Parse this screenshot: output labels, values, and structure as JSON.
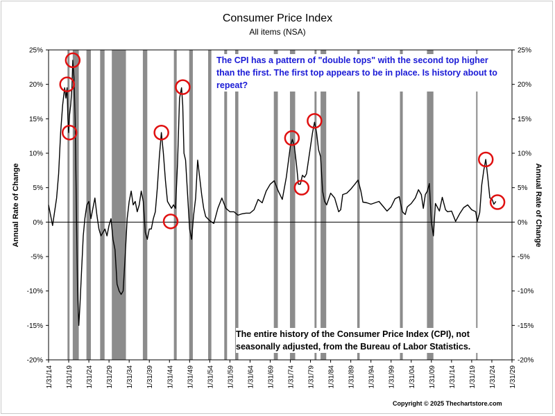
{
  "chart_data": {
    "type": "line",
    "title": "Consumer Price Index",
    "subtitle": "All items (NSA)",
    "ylabel_left": "Annual Rate of Change",
    "ylabel_right": "Annual Rate of Change",
    "ylim": [
      -20,
      25
    ],
    "xlim": [
      1914,
      2029
    ],
    "y_ticks": [
      "25%",
      "20%",
      "15%",
      "10%",
      "5%",
      "0%",
      "-5%",
      "-10%",
      "-15%",
      "-20%"
    ],
    "x_ticks": [
      "1/31/14",
      "1/31/19",
      "1/31/24",
      "1/31/29",
      "1/31/34",
      "1/31/39",
      "1/31/44",
      "1/31/49",
      "1/31/54",
      "1/31/59",
      "1/31/64",
      "1/31/69",
      "1/31/74",
      "1/31/79",
      "1/31/84",
      "1/31/89",
      "1/31/94",
      "1/31/99",
      "1/31/04",
      "1/31/09",
      "1/31/14",
      "1/31/19",
      "1/31/24",
      "1/31/29"
    ],
    "recessions": [
      [
        1918.7,
        1919.2
      ],
      [
        1920.0,
        1921.5
      ],
      [
        1923.4,
        1924.5
      ],
      [
        1926.8,
        1927.9
      ],
      [
        1929.7,
        1933.2
      ],
      [
        1937.4,
        1938.5
      ],
      [
        1945.1,
        1945.8
      ],
      [
        1948.9,
        1949.8
      ],
      [
        1953.6,
        1954.4
      ],
      [
        1957.6,
        1958.3
      ],
      [
        1960.3,
        1961.1
      ],
      [
        1969.9,
        1970.9
      ],
      [
        1973.9,
        1975.2
      ],
      [
        1980.0,
        1980.5
      ],
      [
        1981.5,
        1982.9
      ],
      [
        1990.6,
        1991.2
      ],
      [
        2001.2,
        2001.9
      ],
      [
        2007.9,
        2009.5
      ],
      [
        2020.1,
        2020.3
      ]
    ],
    "series": [
      {
        "name": "",
        "x": [
          1914.0,
          1914.5,
          1915.0,
          1915.5,
          1916.0,
          1916.5,
          1917.0,
          1917.5,
          1918.0,
          1918.3,
          1918.6,
          1918.8,
          1919.0,
          1919.2,
          1919.5,
          1919.8,
          1920.0,
          1920.3,
          1920.6,
          1920.9,
          1921.2,
          1921.5,
          1921.8,
          1922.2,
          1922.6,
          1923.0,
          1923.5,
          1924.0,
          1924.5,
          1925.0,
          1925.5,
          1926.0,
          1926.5,
          1927.0,
          1927.5,
          1928.0,
          1928.5,
          1929.0,
          1929.5,
          1930.0,
          1930.5,
          1931.0,
          1931.5,
          1932.0,
          1932.5,
          1933.0,
          1933.5,
          1934.0,
          1934.5,
          1935.0,
          1935.5,
          1936.0,
          1936.5,
          1937.0,
          1937.5,
          1938.0,
          1938.5,
          1939.0,
          1939.5,
          1940.0,
          1940.5,
          1941.0,
          1941.5,
          1942.0,
          1942.5,
          1943.0,
          1943.5,
          1944.0,
          1944.5,
          1945.0,
          1945.5,
          1946.0,
          1946.5,
          1947.0,
          1947.3,
          1947.6,
          1948.0,
          1948.5,
          1949.0,
          1949.5,
          1950.0,
          1950.5,
          1951.0,
          1951.5,
          1952.0,
          1952.5,
          1953.0,
          1954.0,
          1955.0,
          1956.0,
          1957.0,
          1958.0,
          1959.0,
          1960.0,
          1961.0,
          1962.0,
          1963.0,
          1964.0,
          1965.0,
          1966.0,
          1967.0,
          1968.0,
          1969.0,
          1970.0,
          1971.0,
          1972.0,
          1973.0,
          1974.0,
          1974.5,
          1975.0,
          1975.5,
          1976.0,
          1976.5,
          1977.0,
          1977.5,
          1978.0,
          1978.5,
          1979.0,
          1979.5,
          1980.0,
          1980.5,
          1981.0,
          1981.5,
          1982.0,
          1982.5,
          1983.0,
          1984.0,
          1985.0,
          1986.0,
          1986.5,
          1987.0,
          1988.0,
          1989.0,
          1990.0,
          1990.8,
          1991.5,
          1992.0,
          1993.0,
          1994.0,
          1995.0,
          1996.0,
          1997.0,
          1998.0,
          1999.0,
          2000.0,
          2001.0,
          2001.8,
          2002.5,
          2003.0,
          2004.0,
          2005.0,
          2005.8,
          2006.5,
          2007.0,
          2007.5,
          2008.0,
          2008.5,
          2009.0,
          2009.5,
          2010.0,
          2011.0,
          2011.7,
          2012.5,
          2013.0,
          2014.0,
          2015.0,
          2016.0,
          2017.0,
          2018.0,
          2019.0,
          2020.0,
          2020.4,
          2021.0,
          2021.5,
          2022.0,
          2022.5,
          2023.0,
          2023.5,
          2024.0,
          2024.5,
          2025.0
        ],
        "values": [
          2.5,
          1.0,
          -0.5,
          1.5,
          3.5,
          7.0,
          13.0,
          17.0,
          19.5,
          18.0,
          19.5,
          15.0,
          13.0,
          15.5,
          17.0,
          19.5,
          23.5,
          21.0,
          15.0,
          2.0,
          -10.0,
          -15.0,
          -12.0,
          -7.0,
          -2.0,
          0.5,
          2.5,
          3.0,
          0.5,
          2.0,
          3.5,
          1.0,
          -1.0,
          -2.0,
          -1.5,
          -1.0,
          -2.0,
          -0.5,
          0.5,
          -2.5,
          -4.0,
          -9.0,
          -10.0,
          -10.5,
          -10.0,
          -5.0,
          0.5,
          3.0,
          4.5,
          2.5,
          3.0,
          1.5,
          2.5,
          4.5,
          3.0,
          -1.5,
          -2.5,
          -1.0,
          -1.0,
          0.5,
          1.5,
          5.0,
          9.5,
          13.0,
          10.0,
          6.0,
          3.0,
          2.5,
          2.0,
          2.5,
          2.0,
          8.5,
          18.0,
          19.5,
          17.0,
          10.0,
          9.0,
          4.0,
          -1.0,
          -2.5,
          1.0,
          3.5,
          9.0,
          6.5,
          4.0,
          2.0,
          0.8,
          0.2,
          -0.2,
          2.0,
          3.5,
          2.0,
          1.5,
          1.5,
          1.0,
          1.2,
          1.3,
          1.3,
          1.8,
          3.3,
          2.8,
          4.5,
          5.5,
          6.0,
          4.5,
          3.3,
          6.5,
          11.0,
          12.0,
          11.0,
          8.5,
          5.5,
          5.5,
          6.8,
          6.5,
          7.0,
          9.0,
          11.0,
          13.0,
          14.5,
          13.0,
          10.5,
          9.5,
          4.5,
          3.0,
          2.5,
          4.2,
          3.5,
          1.5,
          1.8,
          4.0,
          4.2,
          4.8,
          5.5,
          6.1,
          4.5,
          2.9,
          2.8,
          2.6,
          2.8,
          3.0,
          2.3,
          1.6,
          2.2,
          3.4,
          3.7,
          1.5,
          1.1,
          2.2,
          2.7,
          3.5,
          4.7,
          4.0,
          2.0,
          4.0,
          4.5,
          5.6,
          0.0,
          -2.0,
          2.7,
          1.6,
          3.6,
          1.8,
          1.5,
          1.6,
          0.1,
          1.2,
          2.1,
          2.5,
          1.8,
          1.5,
          0.1,
          1.4,
          5.4,
          7.5,
          9.1,
          6.5,
          3.5,
          3.4,
          2.6,
          3.0
        ]
      }
    ],
    "circled_points": [
      [
        1918.6,
        20.0
      ],
      [
        1919.2,
        13.0
      ],
      [
        1920.0,
        23.5
      ],
      [
        1942.0,
        13.0
      ],
      [
        1944.3,
        0.1
      ],
      [
        1947.3,
        19.6
      ],
      [
        1974.4,
        12.2
      ],
      [
        1976.8,
        5.0
      ],
      [
        1980.0,
        14.7
      ],
      [
        2022.5,
        9.1
      ],
      [
        2025.4,
        2.9
      ]
    ],
    "annotation_blue": "The CPI has a pattern of \"double tops\" with the second top higher than the first.  The first top appears to be in place.  Is history about to repeat?",
    "annotation_black": "The entire history of the Consumer Price Index (CPI), not seasonally adjusted, from the Bureau of Labor Statistics.",
    "copyright": "Copyright © 2025 Thechartstore.com",
    "colors": {
      "line": "#000000",
      "recession": "#8c8c8c",
      "circle": "#e01010",
      "annotation_blue": "#1a1ad6"
    }
  }
}
